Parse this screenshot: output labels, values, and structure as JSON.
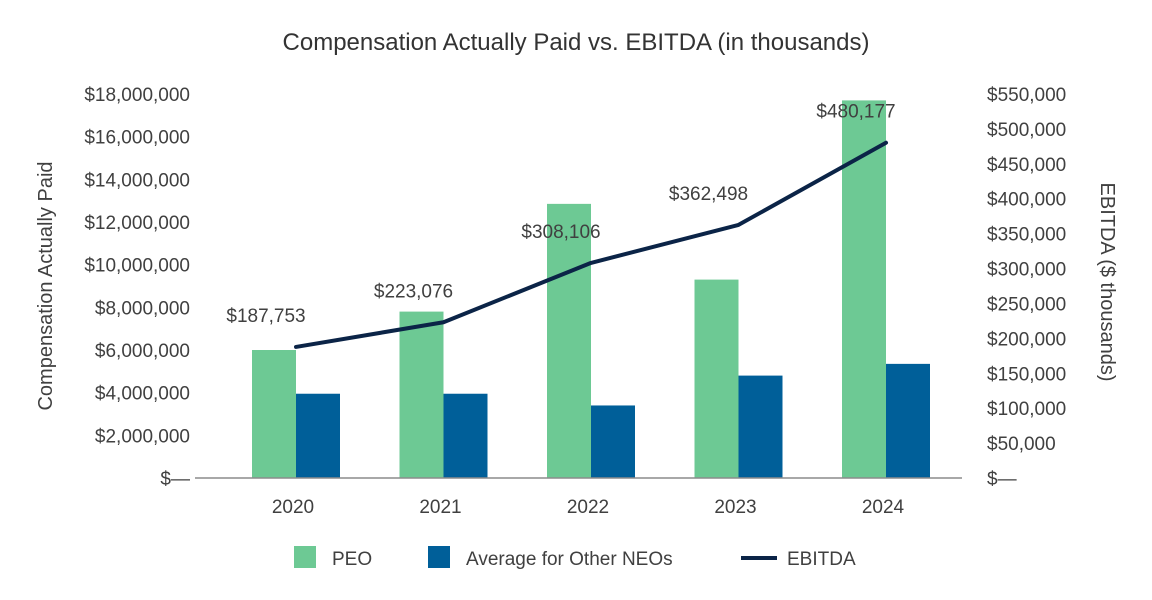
{
  "chart_data": {
    "type": "bar",
    "title": "Compensation Actually Paid vs. EBITDA (in thousands)",
    "categories": [
      "2020",
      "2021",
      "2022",
      "2023",
      "2024"
    ],
    "y_left_label": "Compensation Actually Paid",
    "y_right_label": "EBITDA ($ thousands)",
    "y_left_range": [
      0,
      18000000
    ],
    "y_right_range": [
      0,
      550000
    ],
    "y_left_ticks": [
      0,
      2000000,
      4000000,
      6000000,
      8000000,
      10000000,
      12000000,
      14000000,
      16000000,
      18000000
    ],
    "y_left_tick_labels": [
      "$—",
      "$2,000,000",
      "$4,000,000",
      "$6,000,000",
      "$8,000,000",
      "$10,000,000",
      "$12,000,000",
      "$14,000,000",
      "$16,000,000",
      "$18,000,000"
    ],
    "y_right_ticks": [
      0,
      50000,
      100000,
      150000,
      200000,
      250000,
      300000,
      350000,
      400000,
      450000,
      500000,
      550000
    ],
    "y_right_tick_labels": [
      "$—",
      "$50,000",
      "$100,000",
      "$150,000",
      "$200,000",
      "$250,000",
      "$300,000",
      "$350,000",
      "$400,000",
      "$450,000",
      "$500,000",
      "$550,000"
    ],
    "series": [
      {
        "name": "PEO",
        "type": "bar",
        "axis": "left",
        "color": "#6DC994",
        "values": [
          6000000,
          7800000,
          12850000,
          9300000,
          17700000
        ]
      },
      {
        "name": "Average for Other NEOs",
        "type": "bar",
        "axis": "left",
        "color": "#005F99",
        "values": [
          3950000,
          3950000,
          3400000,
          4800000,
          5350000
        ]
      },
      {
        "name": "EBITDA",
        "type": "line",
        "axis": "right",
        "color": "#0B2447",
        "values": [
          187753,
          223076,
          308106,
          362498,
          480177
        ],
        "labels": [
          "$187,753",
          "$223,076",
          "$308,106",
          "$362,498",
          "$480,177"
        ]
      }
    ],
    "legend_position": "bottom"
  }
}
